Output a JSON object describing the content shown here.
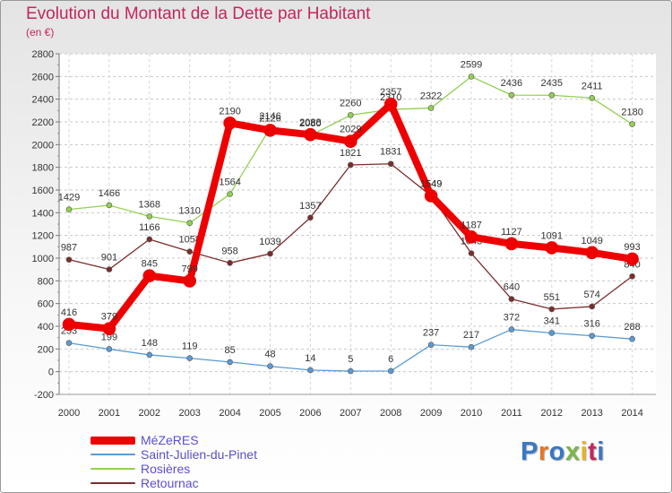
{
  "title": "Evolution du Montant de la Dette par Habitant",
  "unit": "(en €)",
  "logo": {
    "letters": [
      "P",
      "r",
      "o",
      "x",
      "i",
      "t",
      "i"
    ],
    "colors": [
      "#3a78c4",
      "#e87722",
      "#3a78c4",
      "#7ab648",
      "#e8b422",
      "#c4265c",
      "#3a78c4"
    ]
  },
  "chart_data": {
    "type": "line",
    "x": [
      "2000",
      "2001",
      "2002",
      "2003",
      "2004",
      "2005",
      "2006",
      "2007",
      "2008",
      "2009",
      "2010",
      "2011",
      "2012",
      "2013",
      "2014"
    ],
    "ylim": [
      -200,
      2800
    ],
    "yticks": [
      -200,
      0,
      200,
      400,
      600,
      800,
      1000,
      1200,
      1400,
      1600,
      1800,
      2000,
      2200,
      2400,
      2600,
      2800
    ],
    "grid": true,
    "legend_position": "bottom-left",
    "series": [
      {
        "name": "Saint-Julien-du-Pinet",
        "color": "#5b9bd5",
        "width": 1.3,
        "marker": 3,
        "values": [
          253,
          199,
          148,
          119,
          85,
          48,
          14,
          5,
          6,
          237,
          217,
          372,
          341,
          316,
          288
        ]
      },
      {
        "name": "Rosières",
        "color": "#92d050",
        "width": 1.3,
        "marker": 3,
        "values": [
          1429,
          1466,
          1368,
          1310,
          1564,
          2146,
          2080,
          2260,
          2310,
          2322,
          2599,
          2436,
          2435,
          2411,
          2180
        ]
      },
      {
        "name": "Retournac",
        "color": "#7b2c2c",
        "width": 1.3,
        "marker": 3,
        "values": [
          987,
          901,
          1166,
          1058,
          958,
          1039,
          1357,
          1821,
          1831,
          1549,
          1043,
          640,
          551,
          574,
          840
        ]
      },
      {
        "name": "MéZeRES",
        "color": "#ee0000",
        "width": 8,
        "marker": 7,
        "values": [
          416,
          379,
          845,
          799,
          2190,
          2126,
          2088,
          2029,
          2357,
          1549,
          1187,
          1127,
          1091,
          1049,
          993
        ]
      }
    ],
    "legend_order": [
      "MéZeRES",
      "Saint-Julien-du-Pinet",
      "Rosières",
      "Retournac"
    ]
  }
}
